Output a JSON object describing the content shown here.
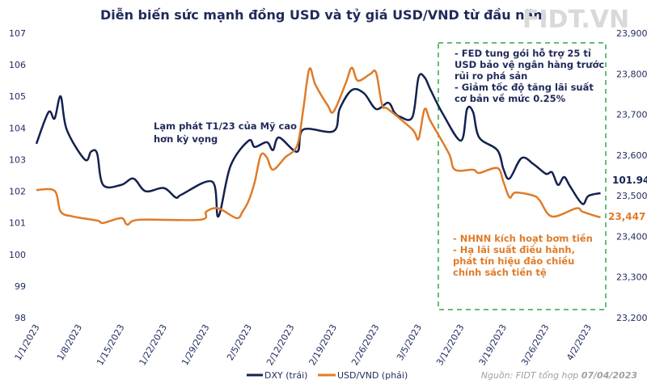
{
  "chart_data": {
    "type": "line",
    "title": "Diễn biến sức mạnh đồng USD và tỷ giá USD/VND từ đầu năm",
    "logo": "FIDT.VN",
    "x_ticks": [
      "1/1/2023",
      "1/8/2023",
      "1/15/2023",
      "1/22/2023",
      "1/29/2023",
      "2/5/2023",
      "2/12/2023",
      "2/19/2023",
      "2/26/2023",
      "3/5/2023",
      "3/12/2023",
      "3/19/2023",
      "3/26/2023",
      "4/2/2023"
    ],
    "y_left": {
      "range": [
        98,
        107
      ],
      "ticks": [
        "98",
        "99",
        "100",
        "101",
        "102",
        "103",
        "104",
        "105",
        "106",
        "107"
      ]
    },
    "y_right": {
      "range": [
        23200,
        23900
      ],
      "ticks": [
        "23,200",
        "23,300",
        "23,400",
        "23,500",
        "23,600",
        "23,700",
        "23,800",
        "23,900"
      ]
    },
    "grid": false,
    "legend_placement": "bottom-left",
    "series": [
      {
        "name": "DXY (trái)",
        "axis": "left",
        "color": "#14214f",
        "end_label": "101.94",
        "x": [
          "1/1",
          "1/3",
          "1/4",
          "1/5",
          "1/6",
          "1/9",
          "1/10",
          "1/11",
          "1/12",
          "1/15",
          "1/17",
          "1/19",
          "1/22",
          "1/24",
          "1/25",
          "1/30",
          "1/31",
          "2/2",
          "2/5",
          "2/6",
          "2/8",
          "2/9",
          "2/10",
          "2/13",
          "2/14",
          "2/19",
          "2/20",
          "2/22",
          "2/24",
          "2/26",
          "2/28",
          "3/1",
          "3/2",
          "3/4",
          "3/5",
          "3/6",
          "3/7",
          "3/9",
          "3/12",
          "3/13",
          "3/14",
          "3/15",
          "3/18",
          "3/19",
          "3/20",
          "3/22",
          "3/24",
          "3/26",
          "3/27",
          "3/28",
          "3/29",
          "3/30",
          "4/1",
          "4/2",
          "4/4"
        ],
        "y": [
          103.5,
          104.5,
          104.3,
          105.0,
          103.95,
          103.0,
          103.25,
          103.2,
          102.2,
          102.2,
          102.4,
          102.0,
          102.1,
          101.8,
          101.9,
          102.3,
          101.2,
          102.8,
          103.6,
          103.4,
          103.55,
          103.3,
          103.7,
          103.25,
          103.95,
          103.9,
          104.6,
          105.2,
          105.1,
          104.6,
          104.8,
          104.5,
          104.35,
          104.35,
          105.6,
          105.6,
          105.2,
          104.45,
          103.6,
          104.6,
          104.5,
          103.7,
          103.3,
          102.7,
          102.4,
          103.05,
          102.85,
          102.55,
          102.6,
          102.2,
          102.45,
          102.15,
          101.6,
          101.85,
          101.94
        ]
      },
      {
        "name": "USD/VND (phải)",
        "axis": "right",
        "color": "#e07b28",
        "end_label": "23,447",
        "x": [
          "1/1",
          "1/4",
          "1/5",
          "1/7",
          "1/11",
          "1/12",
          "1/15",
          "1/16",
          "1/18",
          "1/28",
          "1/29",
          "1/31",
          "2/3",
          "2/4",
          "2/5",
          "2/6",
          "2/7",
          "2/8",
          "2/9",
          "2/11",
          "2/13",
          "2/14",
          "2/15",
          "2/16",
          "2/18",
          "2/19",
          "2/21",
          "2/22",
          "2/23",
          "2/25",
          "2/26",
          "2/27",
          "2/28",
          "3/4",
          "3/5",
          "3/6",
          "3/7",
          "3/10",
          "3/11",
          "3/14",
          "3/15",
          "3/18",
          "3/19",
          "3/20",
          "3/21",
          "3/24",
          "3/25",
          "3/27",
          "3/31",
          "4/1",
          "4/3",
          "4/4"
        ],
        "y": [
          23514,
          23512,
          23461,
          23449,
          23439,
          23433,
          23445,
          23429,
          23441,
          23441,
          23461,
          23469,
          23445,
          23461,
          23488,
          23534,
          23600,
          23594,
          23564,
          23594,
          23624,
          23713,
          23812,
          23773,
          23723,
          23707,
          23777,
          23815,
          23783,
          23799,
          23803,
          23723,
          23713,
          23663,
          23640,
          23713,
          23683,
          23604,
          23564,
          23564,
          23556,
          23568,
          23534,
          23496,
          23508,
          23500,
          23488,
          23449,
          23469,
          23461,
          23451,
          23447
        ]
      }
    ],
    "annotations": {
      "inflation": [
        "Lạm phát T1/23  của Mỹ cao",
        "hơn kỳ vọng"
      ],
      "fed": [
        "- FED tung gói hỗ trợ 25 tỉ",
        "USD bảo vệ ngân hàng trước",
        "rủi ro phá sản",
        "- Giảm tốc độ tăng lãi suất",
        "cơ bản về mức 0.25%"
      ],
      "sbv": [
        "- NHNN  kích hoạt bơm tiền",
        "- Hạ lãi suất điều hành,",
        "phát tín hiệu đảo chiều",
        "chính sách tiền tệ"
      ]
    },
    "source_prefix": "Nguồn: FIDT tổng hợp ",
    "source_date": "07/04/2023"
  }
}
